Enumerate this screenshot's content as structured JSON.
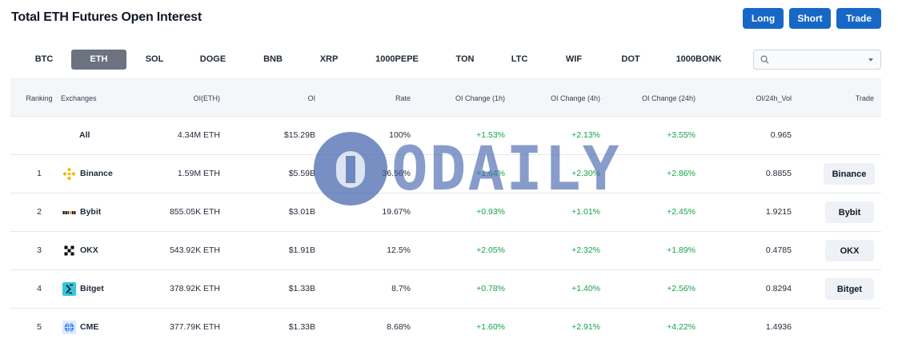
{
  "title": "Total ETH Futures Open Interest",
  "actions": {
    "long": "Long",
    "short": "Short",
    "trade": "Trade"
  },
  "coins": [
    "BTC",
    "ETH",
    "SOL",
    "DOGE",
    "BNB",
    "XRP",
    "1000PEPE",
    "TON",
    "LTC",
    "WIF",
    "DOT",
    "1000BONK"
  ],
  "active_coin": "ETH",
  "search": {
    "value": "",
    "placeholder": ""
  },
  "columns": {
    "ranking": "Ranking",
    "exchanges": "Exchanges",
    "oi_eth": "OI(ETH)",
    "oi": "OI",
    "rate": "Rate",
    "ch1h": "OI Change (1h)",
    "ch4h": "OI Change (4h)",
    "ch24h": "OI Change (24h)",
    "vol": "OI/24h_Vol",
    "trade": "Trade"
  },
  "rows": [
    {
      "rank": "",
      "exchange": "All",
      "oi_eth": "4.34M ETH",
      "oi": "$15.29B",
      "rate": "100%",
      "ch1h": "+1.53%",
      "ch4h": "+2.13%",
      "ch24h": "+3.55%",
      "vol": "0.965",
      "trade": ""
    },
    {
      "rank": "1",
      "exchange": "Binance",
      "oi_eth": "1.59M ETH",
      "oi": "$5.59B",
      "rate": "36.56%",
      "ch1h": "+1.64%",
      "ch4h": "+2.30%",
      "ch24h": "+2.86%",
      "vol": "0.8855",
      "trade": "Binance"
    },
    {
      "rank": "2",
      "exchange": "Bybit",
      "oi_eth": "855.05K ETH",
      "oi": "$3.01B",
      "rate": "19.67%",
      "ch1h": "+0.93%",
      "ch4h": "+1.01%",
      "ch24h": "+2.45%",
      "vol": "1.9215",
      "trade": "Bybit"
    },
    {
      "rank": "3",
      "exchange": "OKX",
      "oi_eth": "543.92K ETH",
      "oi": "$1.91B",
      "rate": "12.5%",
      "ch1h": "+2.05%",
      "ch4h": "+2.32%",
      "ch24h": "+1.89%",
      "vol": "0.4785",
      "trade": "OKX"
    },
    {
      "rank": "4",
      "exchange": "Bitget",
      "oi_eth": "378.92K ETH",
      "oi": "$1.33B",
      "rate": "8.7%",
      "ch1h": "+0.78%",
      "ch4h": "+1.40%",
      "ch24h": "+2.56%",
      "vol": "0.8294",
      "trade": "Bitget"
    },
    {
      "rank": "5",
      "exchange": "CME",
      "oi_eth": "377.79K ETH",
      "oi": "$1.33B",
      "rate": "8.68%",
      "ch1h": "+1.60%",
      "ch4h": "+2.91%",
      "ch24h": "+4.22%",
      "vol": "1.4936",
      "trade": ""
    }
  ],
  "watermark": "ODAILY",
  "colors": {
    "accent": "#1767c7",
    "positive": "#16a34a",
    "active_tab": "#6b7280",
    "header_bg": "#f4f6f9"
  },
  "icons": {
    "search": "search-icon",
    "dropdown": "chevron-down-icon",
    "binance": "binance-logo-icon",
    "bybit": "bybit-logo-icon",
    "okx": "okx-logo-icon",
    "bitget": "bitget-logo-icon",
    "cme": "cme-logo-icon"
  }
}
